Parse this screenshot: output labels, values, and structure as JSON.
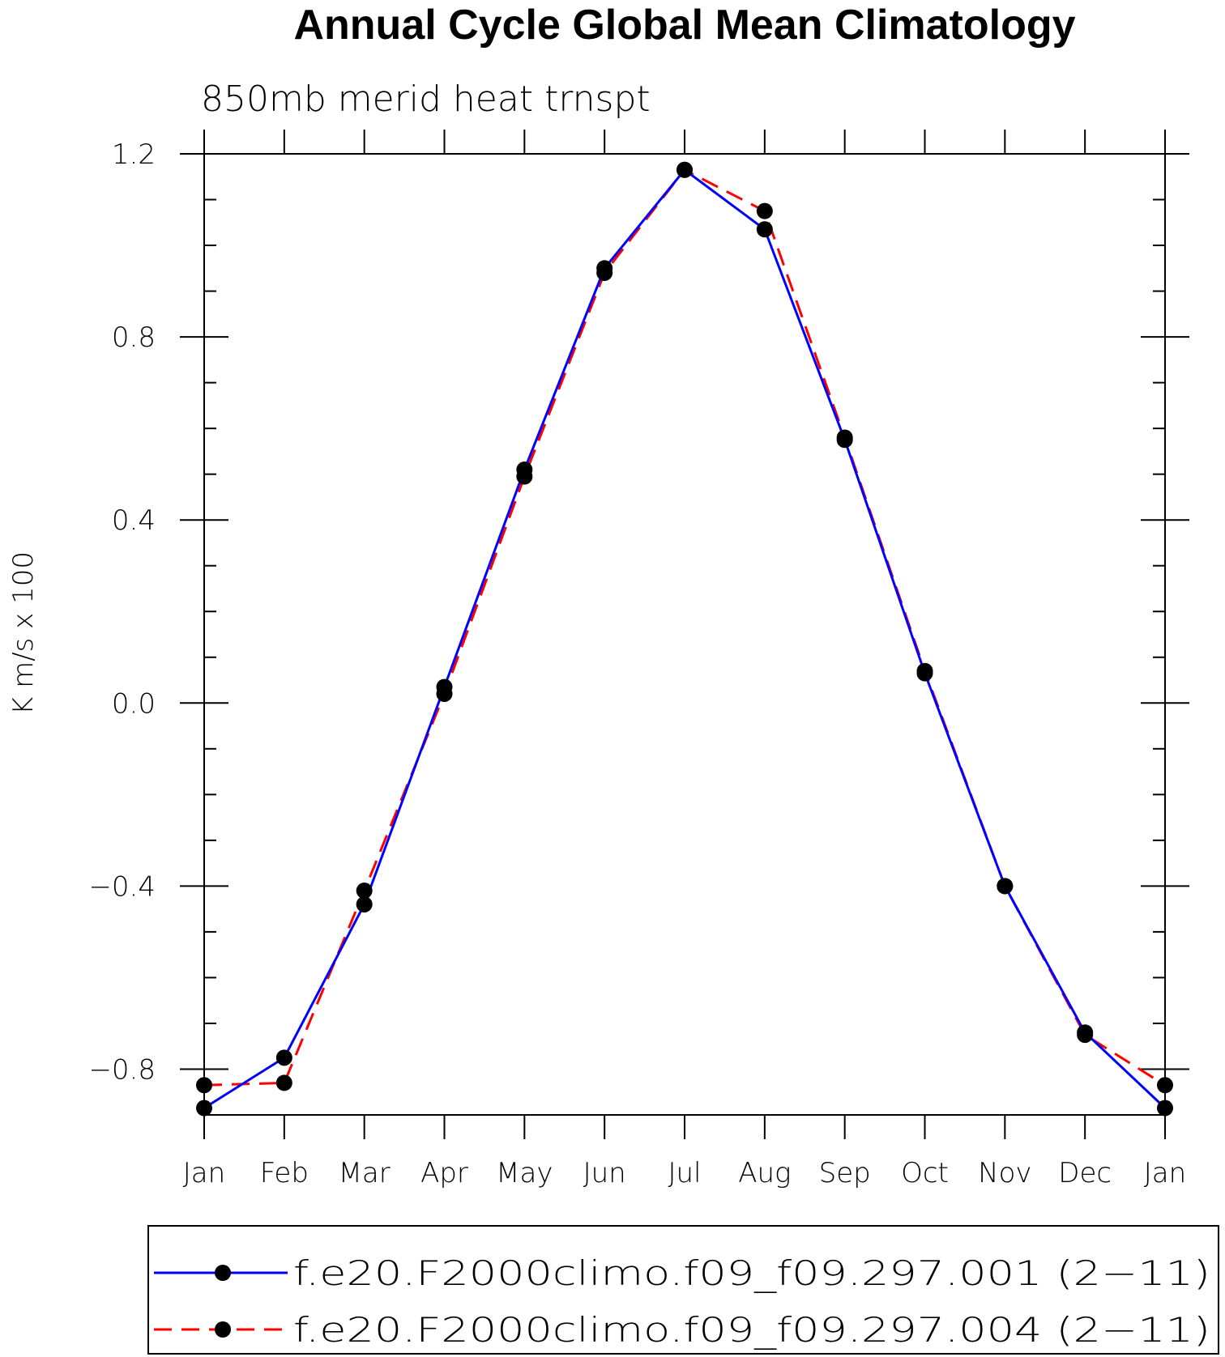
{
  "chart_data": {
    "type": "line",
    "title": "Annual Cycle Global Mean Climatology",
    "subtitle": "850mb merid heat trnspt",
    "ylabel": "K m/s x 100",
    "xlabel": "",
    "categories": [
      "Jan",
      "Feb",
      "Mar",
      "Apr",
      "May",
      "Jun",
      "Jul",
      "Aug",
      "Sep",
      "Oct",
      "Nov",
      "Dec",
      "Jan"
    ],
    "ylim": [
      -0.9,
      1.2
    ],
    "yticks": [
      1.2,
      0.8,
      0.4,
      0.0,
      -0.4,
      -0.8
    ],
    "ytick_labels": [
      "1.2",
      "0.8",
      "0.4",
      "0.0",
      "−0.4",
      "−0.8"
    ],
    "grid": false,
    "legend_position": "bottom",
    "series": [
      {
        "name": "f.e20.F2000climo.f09_f09.297.001 (2−11)",
        "color": "#0000ff",
        "dash": "solid",
        "marker": "circle",
        "values": [
          -0.885,
          -0.775,
          -0.44,
          0.035,
          0.51,
          0.95,
          1.165,
          1.035,
          0.575,
          0.065,
          -0.4,
          -0.72,
          -0.885
        ]
      },
      {
        "name": "f.e20.F2000climo.f09_f09.297.004 (2−11)",
        "color": "#ff0000",
        "dash": "dashed",
        "marker": "circle",
        "values": [
          -0.835,
          -0.83,
          -0.41,
          0.02,
          0.495,
          0.94,
          1.165,
          1.075,
          0.58,
          0.07,
          -0.4,
          -0.725,
          -0.835
        ]
      }
    ]
  }
}
